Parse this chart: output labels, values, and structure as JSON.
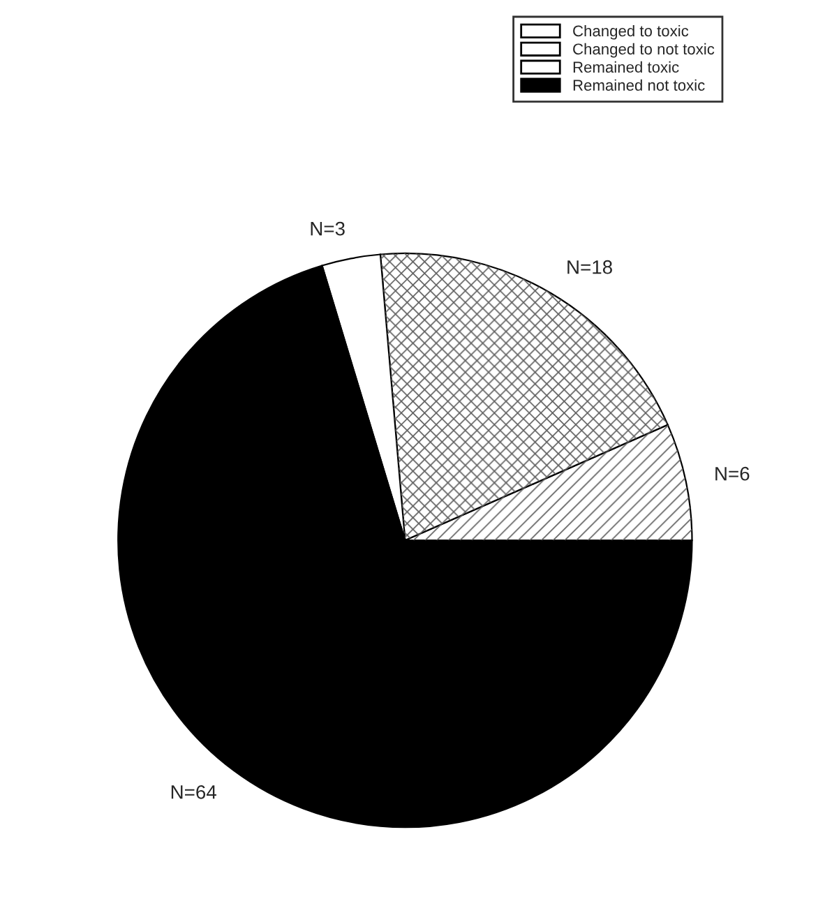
{
  "chart_data": {
    "type": "pie",
    "categories": [
      "Changed to toxic",
      "Changed to not toxic",
      "Remained toxic",
      "Remained not toxic"
    ],
    "values": [
      6,
      18,
      3,
      64
    ],
    "value_labels": [
      "N=6",
      "N=18",
      "N=3",
      "N=64"
    ],
    "colors": [
      "#ffffff",
      "#ffffff",
      "#ffffff",
      "#000000"
    ],
    "legend": "top right"
  }
}
